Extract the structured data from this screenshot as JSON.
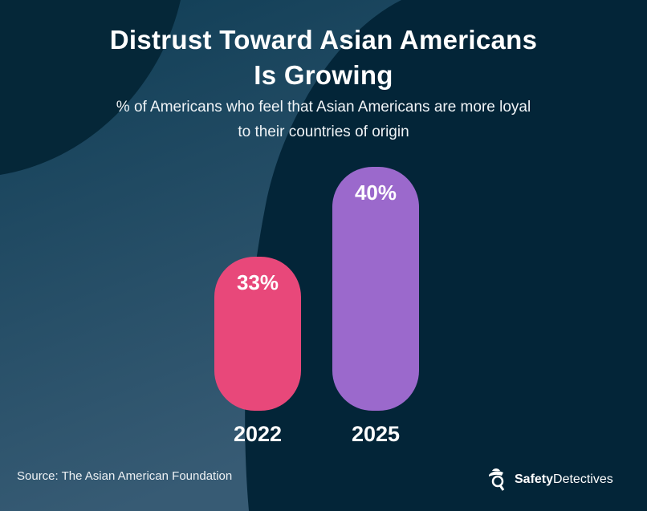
{
  "title_line1": "Distrust Toward Asian Americans",
  "title_line2": "Is Growing",
  "subtitle_line1": "% of Americans who feel that Asian Americans are more loyal",
  "subtitle_line2": "to their countries of origin",
  "source": "Source: The Asian American Foundation",
  "logo": {
    "bold": "Safety",
    "regular": "Detectives"
  },
  "colors": {
    "background": "#032538",
    "bar_2022": "#e8487a",
    "bar_2025": "#9b69cc"
  },
  "chart_data": {
    "type": "bar",
    "title": "Distrust Toward Asian Americans Is Growing",
    "subtitle": "% of Americans who feel that Asian Americans are more loyal to their countries of origin",
    "categories": [
      "2022",
      "2025"
    ],
    "values": [
      33,
      40
    ],
    "labels": [
      "33%",
      "40%"
    ],
    "unit": "%"
  }
}
